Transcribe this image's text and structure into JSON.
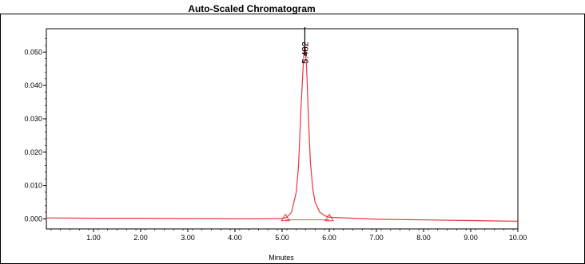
{
  "chart_data": {
    "type": "line",
    "title": "Auto-Scaled Chromatogram",
    "xlabel": "Minutes",
    "ylabel": "",
    "xlim": [
      0.0,
      10.0
    ],
    "ylim": [
      -0.003,
      0.057
    ],
    "x_ticks": [
      "1.00",
      "2.00",
      "3.00",
      "4.00",
      "5.00",
      "6.00",
      "7.00",
      "8.00",
      "9.00",
      "10.00"
    ],
    "y_ticks": [
      "0.000",
      "0.010",
      "0.020",
      "0.030",
      "0.040",
      "0.050"
    ],
    "grid": false,
    "series": [
      {
        "name": "",
        "color": "#e8383d",
        "x": [
          0.0,
          1.0,
          2.0,
          3.0,
          4.0,
          4.5,
          5.0,
          5.1,
          5.2,
          5.3,
          5.35,
          5.4,
          5.45,
          5.482,
          5.52,
          5.56,
          5.6,
          5.65,
          5.7,
          5.8,
          5.9,
          6.0,
          6.5,
          7.0,
          8.0,
          9.0,
          10.0
        ],
        "y": [
          0.0003,
          0.0002,
          0.0002,
          0.0001,
          0.0,
          0.0,
          0.0001,
          0.0005,
          0.002,
          0.008,
          0.016,
          0.033,
          0.047,
          0.053,
          0.045,
          0.03,
          0.017,
          0.009,
          0.005,
          0.002,
          0.001,
          0.0005,
          0.0002,
          -0.0001,
          -0.0003,
          -0.0005,
          -0.0007
        ]
      }
    ],
    "peaks": [
      {
        "retention_time": "5.482",
        "x": 5.482
      }
    ],
    "integration_markers": [
      {
        "x": 5.07,
        "y": -0.0003
      },
      {
        "x": 6.0,
        "y": -0.0003
      }
    ]
  }
}
